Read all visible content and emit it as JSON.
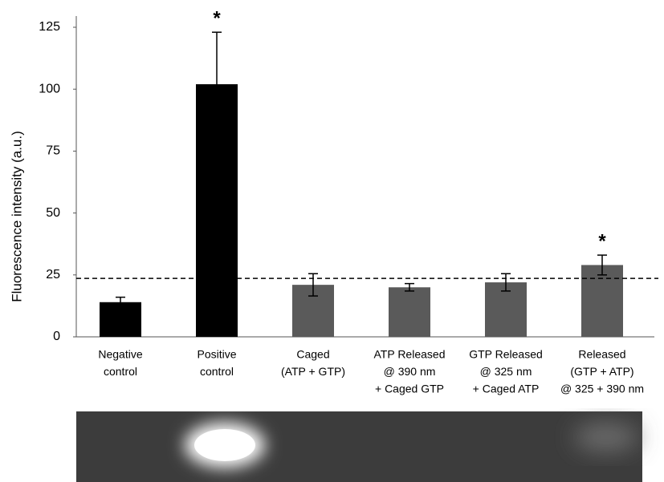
{
  "chart_data": {
    "type": "bar",
    "y_label": "Fluorescence intensity (a.u.)",
    "categories": [
      [
        "Negative",
        "control"
      ],
      [
        "Positive",
        "control"
      ],
      [
        "Caged",
        "(ATP + GTP)"
      ],
      [
        "ATP Released",
        "@ 390 nm",
        "+ Caged GTP"
      ],
      [
        "GTP Released",
        "@ 325 nm",
        "+ Caged ATP"
      ],
      [
        "Released",
        "(GTP + ATP)",
        "@ 325 + 390 nm"
      ]
    ],
    "values": [
      14,
      102,
      21,
      20,
      22,
      29
    ],
    "errors": [
      2,
      21,
      4.5,
      1.5,
      3.5,
      4
    ],
    "colors": [
      "#000000",
      "#000000",
      "#5a5a5a",
      "#5a5a5a",
      "#5a5a5a",
      "#5a5a5a"
    ],
    "markers": [
      null,
      "*",
      null,
      null,
      null,
      "*"
    ],
    "reference_line": {
      "value": 23.6,
      "style": "dashed"
    },
    "ylim": [
      0,
      125
    ],
    "yticks": [
      0,
      25,
      50,
      75,
      100,
      125
    ],
    "grid": false
  }
}
